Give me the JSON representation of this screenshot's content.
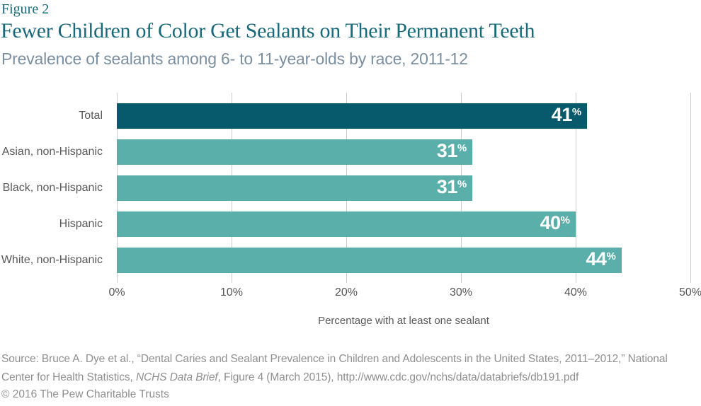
{
  "figure_label": "Figure 2",
  "title": "Fewer Children of Color Get Sealants on Their Permanent Teeth",
  "subtitle": "Prevalence of sealants among 6- to 11-year-olds by race, 2011-12",
  "chart_data": {
    "type": "bar",
    "orientation": "horizontal",
    "categories": [
      "Total",
      "Asian, non-Hispanic",
      "Black, non-Hispanic",
      "Hispanic",
      "White, non-Hispanic"
    ],
    "values": [
      41,
      31,
      31,
      40,
      44
    ],
    "value_suffix": "%",
    "xticks": [
      "0%",
      "10%",
      "20%",
      "30%",
      "40%",
      "50%"
    ],
    "xlim": [
      0,
      50
    ],
    "xlabel": "Percentage with at least one sealant",
    "grid": true,
    "legend": false,
    "bar_colors": [
      "#065a6b",
      "#5aafab",
      "#5aafab",
      "#5aafab",
      "#5aafab"
    ]
  },
  "colors": {
    "title_teal": "#186a7a",
    "subtitle_gray_blue": "#7b8fa0",
    "dark_bar": "#065a6b",
    "light_bar": "#5aafab",
    "grid_line": "#cccccc",
    "value_label_text": "#ffffff"
  },
  "source": {
    "line1": "Source: Bruce A. Dye et al., “Dental Caries and Sealant Prevalence in Children and Adolescents in the United States, 2011–2012,” National",
    "line2_prefix": "Center for Health Statistics, ",
    "line2_italic": "NCHS Data Brief",
    "line2_suffix": ", Figure 4 (March 2015), http://www.cdc.gov/nchs/data/databriefs/db191.pdf"
  },
  "copyright": "© 2016 The Pew Charitable Trusts"
}
